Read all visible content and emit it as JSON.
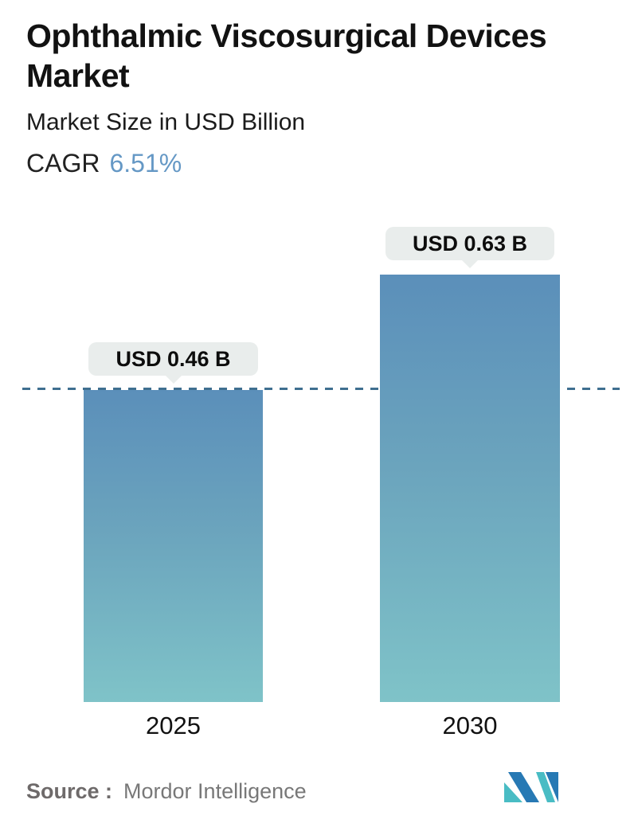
{
  "header": {
    "title_lines": [
      "Ophthalmic Viscosurgical Devices",
      "Market"
    ],
    "subtitle": "Market Size in USD Billion",
    "cagr_label": "CAGR",
    "cagr_value": "6.51%"
  },
  "chart_data": {
    "type": "bar",
    "title": "Ophthalmic Viscosurgical Devices Market",
    "subtitle": "Market Size in USD Billion",
    "cagr": "6.51%",
    "categories": [
      "2025",
      "2030"
    ],
    "values": [
      0.46,
      0.63
    ],
    "value_labels": [
      "USD 0.46 B",
      "USD 0.63 B"
    ],
    "ylabel": "Market Size (USD Billion)",
    "ylim": [
      0,
      0.7
    ],
    "grid": false,
    "legend": false,
    "reference_line": {
      "value": 0.46,
      "style": "dashed",
      "color": "#3f6f90"
    },
    "bar_gradient_top": "#5b8fba",
    "bar_gradient_bottom": "#7fc3c8",
    "label_bubble_bg": "#e9edec"
  },
  "source": {
    "label": "Source :",
    "name": "Mordor Intelligence"
  },
  "colors": {
    "accent_blue": "#6598c5",
    "dash_line": "#3f6f90",
    "logo_blue": "#2779b4",
    "logo_teal": "#49bcc4",
    "text_dark": "#121212",
    "text_gray": "#787878"
  }
}
